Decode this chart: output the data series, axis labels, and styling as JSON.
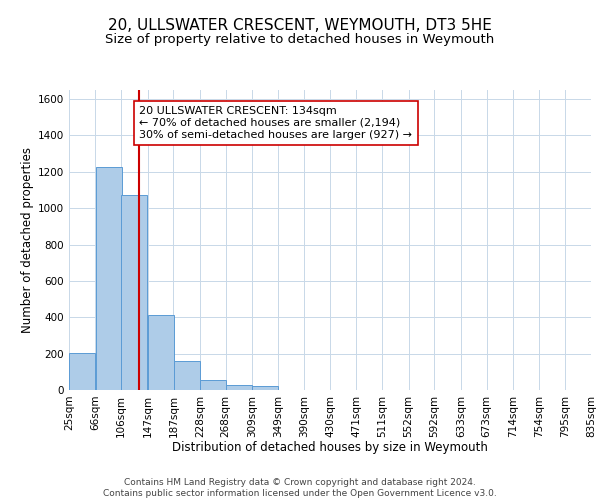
{
  "title": "20, ULLSWATER CRESCENT, WEYMOUTH, DT3 5HE",
  "subtitle": "Size of property relative to detached houses in Weymouth",
  "xlabel": "Distribution of detached houses by size in Weymouth",
  "ylabel": "Number of detached properties",
  "footer_lines": [
    "Contains HM Land Registry data © Crown copyright and database right 2024.",
    "Contains public sector information licensed under the Open Government Licence v3.0."
  ],
  "bins": [
    25,
    66,
    106,
    147,
    187,
    228,
    268,
    309,
    349,
    390,
    430,
    471,
    511,
    552,
    592,
    633,
    673,
    714,
    754,
    795,
    835
  ],
  "bin_labels": [
    "25sqm",
    "66sqm",
    "106sqm",
    "147sqm",
    "187sqm",
    "228sqm",
    "268sqm",
    "309sqm",
    "349sqm",
    "390sqm",
    "430sqm",
    "471sqm",
    "511sqm",
    "552sqm",
    "592sqm",
    "633sqm",
    "673sqm",
    "714sqm",
    "754sqm",
    "795sqm",
    "835sqm"
  ],
  "bar_values": [
    205,
    1225,
    1075,
    410,
    160,
    55,
    25,
    20,
    0,
    0,
    0,
    0,
    0,
    0,
    0,
    0,
    0,
    0,
    0,
    0
  ],
  "bar_color": "#aecce8",
  "bar_edge_color": "#5b9bd5",
  "property_line_x": 134,
  "property_line_color": "#cc0000",
  "annotation_lines": [
    "20 ULLSWATER CRESCENT: 134sqm",
    "← 70% of detached houses are smaller (2,194)",
    "30% of semi-detached houses are larger (927) →"
  ],
  "annotation_box_color": "#ffffff",
  "annotation_box_edge_color": "#cc0000",
  "ylim": [
    0,
    1650
  ],
  "yticks": [
    0,
    200,
    400,
    600,
    800,
    1000,
    1200,
    1400,
    1600
  ],
  "background_color": "#ffffff",
  "grid_color": "#c8d8e8",
  "title_fontsize": 11,
  "subtitle_fontsize": 9.5,
  "axis_label_fontsize": 8.5,
  "tick_fontsize": 7.5,
  "annotation_fontsize": 8,
  "footer_fontsize": 6.5
}
